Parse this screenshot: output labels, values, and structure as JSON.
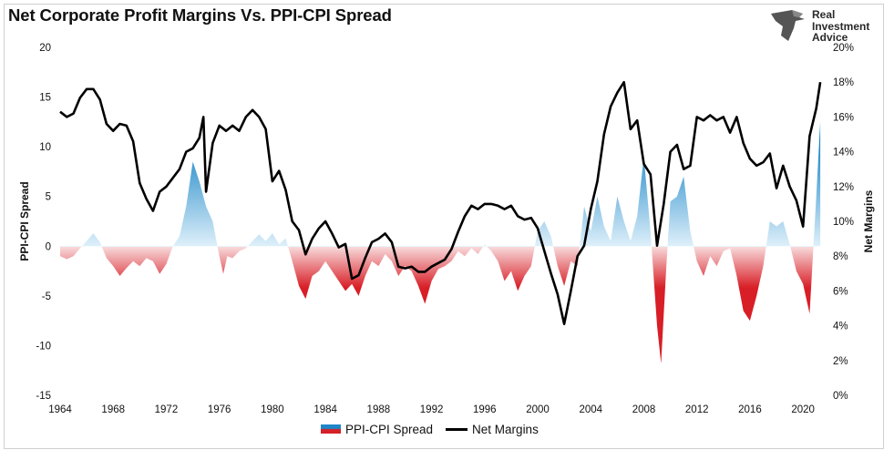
{
  "title": "Net Corporate Profit Margins Vs. PPI-CPI Spread",
  "logo": {
    "line1": "Real",
    "line2": "Investment",
    "line3": "Advice",
    "icon": "eagle-head-icon"
  },
  "legend": {
    "spread": "PPI-CPI Spread",
    "margins": "Net Margins"
  },
  "colors": {
    "positive": "#1f87c8",
    "negative": "#d62027",
    "line": "#000000"
  },
  "chart_data": {
    "type": "area+line",
    "title": "Net Corporate Profit Margins Vs. PPI-CPI Spread",
    "left_axis": {
      "label": "PPI-CPI Spread",
      "ticks": [
        20,
        15,
        10,
        5,
        0,
        -5,
        -10,
        -15
      ],
      "range": [
        -15,
        20
      ]
    },
    "right_axis": {
      "label": "Net Margins",
      "ticks": [
        "20%",
        "18%",
        "16%",
        "14%",
        "12%",
        "10%",
        "8%",
        "6%",
        "4%",
        "2%",
        "0%"
      ],
      "range": [
        0,
        20
      ]
    },
    "x_axis": {
      "ticks": [
        "1964",
        "1968",
        "1972",
        "1976",
        "1980",
        "1984",
        "1988",
        "1992",
        "1996",
        "2000",
        "2004",
        "2008",
        "2012",
        "2016",
        "2020"
      ],
      "range": [
        1964,
        2021.5
      ]
    },
    "series": [
      {
        "name": "PPI-CPI Spread",
        "axis": "left",
        "style": "area",
        "points": [
          [
            1964,
            -1
          ],
          [
            1964.5,
            -1.3
          ],
          [
            1965,
            -1
          ],
          [
            1965.5,
            -0.2
          ],
          [
            1966,
            0.5
          ],
          [
            1966.5,
            1.3
          ],
          [
            1967,
            0.4
          ],
          [
            1967.5,
            -1.2
          ],
          [
            1968,
            -2
          ],
          [
            1968.5,
            -3
          ],
          [
            1969,
            -2.2
          ],
          [
            1969.5,
            -1.5
          ],
          [
            1970,
            -2
          ],
          [
            1970.5,
            -1.2
          ],
          [
            1971,
            -1.5
          ],
          [
            1971.5,
            -2.8
          ],
          [
            1972,
            -1.8
          ],
          [
            1972.5,
            0
          ],
          [
            1973,
            1
          ],
          [
            1973.5,
            4
          ],
          [
            1974,
            8.5
          ],
          [
            1974.5,
            6.5
          ],
          [
            1975,
            4
          ],
          [
            1975.5,
            2.5
          ],
          [
            1976,
            -1
          ],
          [
            1976.3,
            -2.8
          ],
          [
            1976.6,
            -1
          ],
          [
            1977,
            -1.2
          ],
          [
            1977.5,
            -0.5
          ],
          [
            1978,
            -0.2
          ],
          [
            1978.5,
            0.5
          ],
          [
            1979,
            1.2
          ],
          [
            1979.5,
            0.5
          ],
          [
            1980,
            1.3
          ],
          [
            1980.5,
            0.2
          ],
          [
            1981,
            0.8
          ],
          [
            1981.5,
            -1.5
          ],
          [
            1982,
            -4
          ],
          [
            1982.5,
            -5.3
          ],
          [
            1983,
            -3
          ],
          [
            1983.5,
            -2.5
          ],
          [
            1984,
            -1.5
          ],
          [
            1984.5,
            -2.5
          ],
          [
            1985,
            -3.5
          ],
          [
            1985.5,
            -4.5
          ],
          [
            1986,
            -3.8
          ],
          [
            1986.5,
            -5
          ],
          [
            1987,
            -3
          ],
          [
            1987.5,
            -1.5
          ],
          [
            1988,
            -2
          ],
          [
            1988.5,
            -0.8
          ],
          [
            1989,
            -1.5
          ],
          [
            1989.5,
            -3
          ],
          [
            1990,
            -2
          ],
          [
            1990.5,
            -2.5
          ],
          [
            1991,
            -4
          ],
          [
            1991.5,
            -5.8
          ],
          [
            1992,
            -3.5
          ],
          [
            1992.5,
            -2.3
          ],
          [
            1993,
            -2
          ],
          [
            1993.5,
            -1.5
          ],
          [
            1994,
            -0.5
          ],
          [
            1994.5,
            -1
          ],
          [
            1995,
            -0.2
          ],
          [
            1995.5,
            -0.8
          ],
          [
            1996,
            0.2
          ],
          [
            1996.5,
            -0.5
          ],
          [
            1997,
            -1.5
          ],
          [
            1997.5,
            -3.5
          ],
          [
            1998,
            -2.5
          ],
          [
            1998.5,
            -4.5
          ],
          [
            1999,
            -3
          ],
          [
            1999.5,
            -2
          ],
          [
            2000,
            1.5
          ],
          [
            2000.5,
            2.5
          ],
          [
            2001,
            1
          ],
          [
            2001.5,
            -2
          ],
          [
            2002,
            -4
          ],
          [
            2002.5,
            -1.5
          ],
          [
            2003,
            -2
          ],
          [
            2003.5,
            4
          ],
          [
            2004,
            1.5
          ],
          [
            2004.5,
            5
          ],
          [
            2005,
            2
          ],
          [
            2005.5,
            0.5
          ],
          [
            2006,
            5
          ],
          [
            2006.5,
            2.5
          ],
          [
            2007,
            0.5
          ],
          [
            2007.5,
            3
          ],
          [
            2008,
            9
          ],
          [
            2008.5,
            1.5
          ],
          [
            2009,
            -8
          ],
          [
            2009.3,
            -11.8
          ],
          [
            2009.7,
            -2
          ],
          [
            2010,
            4.5
          ],
          [
            2010.5,
            5
          ],
          [
            2011,
            7
          ],
          [
            2011.5,
            1.5
          ],
          [
            2012,
            -1.5
          ],
          [
            2012.5,
            -3
          ],
          [
            2013,
            -1
          ],
          [
            2013.5,
            -2
          ],
          [
            2014,
            -0.5
          ],
          [
            2014.5,
            -0.2
          ],
          [
            2015,
            -3
          ],
          [
            2015.5,
            -6.5
          ],
          [
            2016,
            -7.5
          ],
          [
            2016.5,
            -5
          ],
          [
            2017,
            -2
          ],
          [
            2017.5,
            2.5
          ],
          [
            2018,
            2
          ],
          [
            2018.5,
            2.5
          ],
          [
            2019,
            0.2
          ],
          [
            2019.5,
            -2.5
          ],
          [
            2020,
            -3.8
          ],
          [
            2020.5,
            -6.8
          ],
          [
            2021,
            5
          ],
          [
            2021.3,
            12.5
          ]
        ]
      },
      {
        "name": "Net Margins",
        "axis": "right",
        "style": "line",
        "points": [
          [
            1964,
            16.3
          ],
          [
            1964.5,
            16
          ],
          [
            1965,
            16.2
          ],
          [
            1965.5,
            17.1
          ],
          [
            1966,
            17.6
          ],
          [
            1966.5,
            17.6
          ],
          [
            1967,
            17
          ],
          [
            1967.5,
            15.6
          ],
          [
            1968,
            15.2
          ],
          [
            1968.5,
            15.6
          ],
          [
            1969,
            15.5
          ],
          [
            1969.5,
            14.6
          ],
          [
            1970,
            12.2
          ],
          [
            1970.5,
            11.3
          ],
          [
            1971,
            10.6
          ],
          [
            1971.5,
            11.7
          ],
          [
            1972,
            12
          ],
          [
            1972.5,
            12.5
          ],
          [
            1973,
            13
          ],
          [
            1973.5,
            14
          ],
          [
            1974,
            14.2
          ],
          [
            1974.5,
            14.8
          ],
          [
            1974.8,
            16
          ],
          [
            1975,
            11.7
          ],
          [
            1975.5,
            14.5
          ],
          [
            1976,
            15.5
          ],
          [
            1976.5,
            15.2
          ],
          [
            1977,
            15.5
          ],
          [
            1977.5,
            15.2
          ],
          [
            1978,
            16
          ],
          [
            1978.5,
            16.4
          ],
          [
            1979,
            16
          ],
          [
            1979.5,
            15.3
          ],
          [
            1980,
            12.3
          ],
          [
            1980.5,
            12.9
          ],
          [
            1981,
            11.8
          ],
          [
            1981.5,
            10
          ],
          [
            1982,
            9.5
          ],
          [
            1982.5,
            8.1
          ],
          [
            1983,
            9
          ],
          [
            1983.5,
            9.6
          ],
          [
            1984,
            10
          ],
          [
            1984.5,
            9.3
          ],
          [
            1985,
            8.5
          ],
          [
            1985.5,
            8.7
          ],
          [
            1986,
            6.7
          ],
          [
            1986.5,
            6.9
          ],
          [
            1987,
            7.9
          ],
          [
            1987.5,
            8.8
          ],
          [
            1988,
            9
          ],
          [
            1988.5,
            9.3
          ],
          [
            1989,
            8.8
          ],
          [
            1989.5,
            7.4
          ],
          [
            1990,
            7.3
          ],
          [
            1990.5,
            7.4
          ],
          [
            1991,
            7.1
          ],
          [
            1991.5,
            7.1
          ],
          [
            1992,
            7.4
          ],
          [
            1992.5,
            7.6
          ],
          [
            1993,
            7.8
          ],
          [
            1993.5,
            8.4
          ],
          [
            1994,
            9.4
          ],
          [
            1994.5,
            10.3
          ],
          [
            1995,
            10.9
          ],
          [
            1995.5,
            10.7
          ],
          [
            1996,
            11
          ],
          [
            1996.5,
            11
          ],
          [
            1997,
            10.9
          ],
          [
            1997.5,
            10.7
          ],
          [
            1998,
            10.9
          ],
          [
            1998.5,
            10.3
          ],
          [
            1999,
            10.1
          ],
          [
            1999.5,
            10.2
          ],
          [
            2000,
            9.6
          ],
          [
            2000.5,
            8.3
          ],
          [
            2001,
            7
          ],
          [
            2001.5,
            5.8
          ],
          [
            2002,
            4.1
          ],
          [
            2002.5,
            6
          ],
          [
            2003,
            8
          ],
          [
            2003.5,
            8.6
          ],
          [
            2004,
            10.7
          ],
          [
            2004.5,
            12.3
          ],
          [
            2005,
            15
          ],
          [
            2005.5,
            16.6
          ],
          [
            2006,
            17.4
          ],
          [
            2006.5,
            18
          ],
          [
            2007,
            15.3
          ],
          [
            2007.5,
            15.8
          ],
          [
            2008,
            13.3
          ],
          [
            2008.5,
            12.7
          ],
          [
            2009,
            8.6
          ],
          [
            2009.5,
            11
          ],
          [
            2010,
            14
          ],
          [
            2010.5,
            14.4
          ],
          [
            2011,
            13
          ],
          [
            2011.5,
            13.2
          ],
          [
            2012,
            16
          ],
          [
            2012.5,
            15.8
          ],
          [
            2013,
            16.1
          ],
          [
            2013.5,
            15.8
          ],
          [
            2014,
            16
          ],
          [
            2014.5,
            15.1
          ],
          [
            2015,
            16
          ],
          [
            2015.5,
            14.5
          ],
          [
            2016,
            13.6
          ],
          [
            2016.5,
            13.2
          ],
          [
            2017,
            13.4
          ],
          [
            2017.5,
            13.9
          ],
          [
            2018,
            11.9
          ],
          [
            2018.5,
            13.2
          ],
          [
            2019,
            12
          ],
          [
            2019.5,
            11.2
          ],
          [
            2020,
            9.7
          ],
          [
            2020.5,
            14.9
          ],
          [
            2021,
            16.5
          ],
          [
            2021.3,
            18
          ]
        ]
      }
    ]
  }
}
